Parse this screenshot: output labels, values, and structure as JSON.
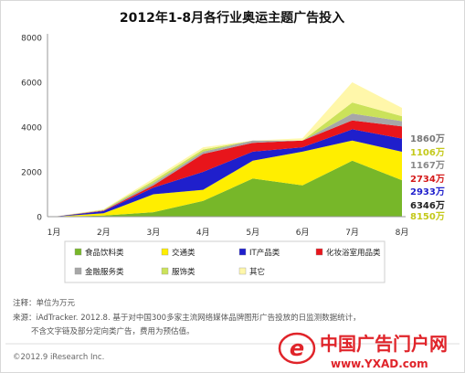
{
  "chart_data": {
    "type": "area",
    "stacked": true,
    "title": "2012年1-8月各行业奥运主题广告投入",
    "categories": [
      "1月",
      "2月",
      "3月",
      "4月",
      "5月",
      "6月",
      "7月",
      "8月"
    ],
    "ylim": [
      0,
      8000
    ],
    "yticks": [
      0,
      2000,
      4000,
      6000,
      8000
    ],
    "grid": false,
    "legend_position": "bottom",
    "series": [
      {
        "name": "食品饮料类",
        "color": "#77b729",
        "values": [
          0,
          50,
          200,
          700,
          1700,
          1400,
          2500,
          1630
        ]
      },
      {
        "name": "交通类",
        "color": "#ffee00",
        "values": [
          0,
          100,
          800,
          500,
          800,
          1500,
          900,
          1269
        ]
      },
      {
        "name": "IT产品类",
        "color": "#1f1fcc",
        "values": [
          0,
          100,
          300,
          800,
          400,
          200,
          500,
          587
        ]
      },
      {
        "name": "化妆浴室用品类",
        "color": "#e8151b",
        "values": [
          0,
          20,
          100,
          800,
          400,
          300,
          400,
          547
        ]
      },
      {
        "name": "金融服务类",
        "color": "#a7a7a7",
        "values": [
          0,
          20,
          100,
          100,
          100,
          0,
          300,
          233
        ]
      },
      {
        "name": "服饰类",
        "color": "#cbe25a",
        "values": [
          0,
          20,
          100,
          100,
          0,
          0,
          500,
          221
        ]
      },
      {
        "name": "其它",
        "color": "#fff7aa",
        "values": [
          0,
          20,
          100,
          100,
          0,
          100,
          900,
          372
        ]
      }
    ],
    "end_labels": [
      {
        "text": "1860万",
        "color": "#777777"
      },
      {
        "text": "1106万",
        "color": "#c4c91a"
      },
      {
        "text": "1167万",
        "color": "#888888"
      },
      {
        "text": "2734万",
        "color": "#d51a1a"
      },
      {
        "text": "2933万",
        "color": "#1f1fcc"
      },
      {
        "text": "6346万",
        "color": "#222222"
      },
      {
        "text": "8150万",
        "color": "#c4c91a"
      }
    ]
  },
  "notes": {
    "unit": "注释：单位为万元",
    "source_line1": "来源：iAdTracker. 2012.8. 基于对中国300多家主流网络媒体品牌图形广告投放的日监测数据统计，",
    "source_line2": "不含文字链及部分定向类广告，费用为预估值。"
  },
  "copyright": "©2012.9 iResearch Inc.",
  "watermark": {
    "main": "中国广告门户网",
    "url": "www.YXAD.com",
    "logo_letter": "e"
  }
}
